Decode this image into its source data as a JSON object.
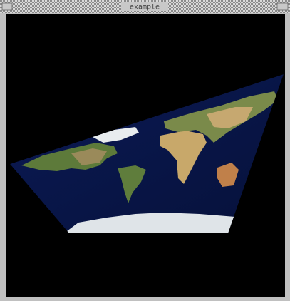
{
  "window": {
    "title": "example"
  }
}
